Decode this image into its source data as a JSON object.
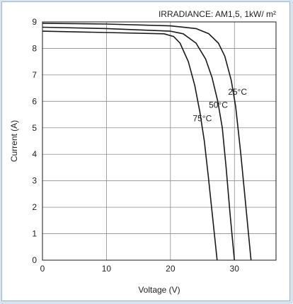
{
  "chart_data": {
    "type": "line",
    "title": "IRRADIANCE: AM1,5, 1kW/ m²",
    "xlabel": "Voltage (V)",
    "ylabel": "Current (A)",
    "xlim": [
      0,
      36.5
    ],
    "ylim": [
      0,
      9
    ],
    "xticks": [
      0,
      10,
      20,
      30
    ],
    "yticks": [
      0,
      1,
      2,
      3,
      4,
      5,
      6,
      7,
      8,
      9
    ],
    "grid": true,
    "colors": {
      "line": "#1a1a1a",
      "grid": "#8c8c8c",
      "frame_bg": "#d6e3ee"
    },
    "series": [
      {
        "name": "25°C",
        "x": [
          0,
          10,
          20,
          24,
          26,
          27.5,
          28.5,
          29.5,
          30.2,
          31,
          31.8,
          32.6
        ],
        "y": [
          8.95,
          8.92,
          8.85,
          8.75,
          8.55,
          8.2,
          7.7,
          6.8,
          5.8,
          4.0,
          2.0,
          0
        ]
      },
      {
        "name": "50°C",
        "x": [
          0,
          10,
          20,
          22,
          24,
          25.5,
          26.5,
          27.4,
          28.1,
          28.7,
          29.3,
          30.0
        ],
        "y": [
          8.8,
          8.75,
          8.65,
          8.55,
          8.2,
          7.6,
          6.9,
          6.0,
          5.0,
          3.5,
          1.8,
          0
        ]
      },
      {
        "name": "75°C",
        "x": [
          0,
          10,
          19,
          20.5,
          21.5,
          22.8,
          23.8,
          24.6,
          25.3,
          25.9,
          26.6,
          27.3
        ],
        "y": [
          8.65,
          8.6,
          8.55,
          8.45,
          8.2,
          7.5,
          6.6,
          5.6,
          4.5,
          3.2,
          1.6,
          0
        ]
      }
    ],
    "annotations": [
      {
        "text": "25°C",
        "x": 29.0,
        "y": 6.25
      },
      {
        "text": "50°C",
        "x": 26.0,
        "y": 5.75
      },
      {
        "text": "75°C",
        "x": 23.5,
        "y": 5.25
      }
    ]
  }
}
